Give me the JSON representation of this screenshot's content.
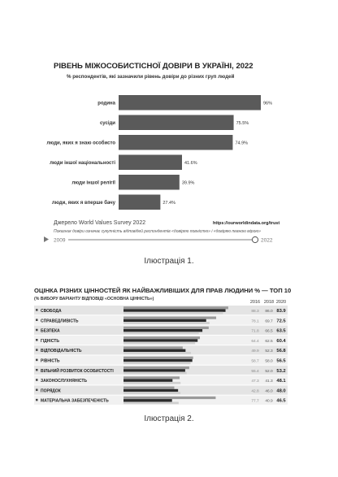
{
  "figure1": {
    "chart_data": {
      "type": "bar",
      "title": "РІВЕНЬ МІЖОСОБИСТІСНОЇ ДОВІРИ В УКРАЇНІ, 2022",
      "subtitle": "% респондентів, які зазначили рівень довіри до різних груп людей",
      "categories": [
        "родина",
        "сусіди",
        "люди, яких я знаю особисто",
        "люди іншої національності",
        "люди іншої релігії",
        "люди, яких я вперше бачу"
      ],
      "values": [
        96,
        75.5,
        74.9,
        41.6,
        39.9,
        27.4
      ],
      "value_labels": [
        "96%",
        "75.5%",
        "74.9%",
        "41.6%",
        "39.9%",
        "27.4%"
      ],
      "xlim": [
        0,
        100
      ],
      "colors": {
        "bar": "#5a5a5a"
      }
    },
    "source": "Джерело World Values Survey 2022",
    "site": "https://ourworldindata.org/trust",
    "note": "Показник довіри означає сукупність відповідей респондентів «довіряю повністю» і «довіряю певною мірою»",
    "timeline": {
      "start": "2009",
      "end": "2022"
    },
    "caption": "Ілюстрація 1."
  },
  "figure2": {
    "chart_data": {
      "type": "bar",
      "title": "ОЦІНКА РІЗНИХ ЦІННОСТЕЙ ЯК НАЙВАЖЛИВІШИХ ДЛЯ ПРАВ ЛЮДИНИ % — ТОП 10",
      "subtitle": "(% ВИБОРУ ВАРІАНТУ ВІДПОВІДІ «ОСНОВНА ЦІННІСТЬ»)",
      "categories": [
        "СВОБОДА",
        "СПРАВЕДЛИВІСТЬ",
        "БЕЗПЕКА",
        "ГІДНІСТЬ",
        "ВІДПОВІДАЛЬНІСТЬ",
        "РІВНІСТЬ",
        "ВІЛЬНИЙ РОЗВИТОК ОСОБИСТОСТІ",
        "ЗАКОНОСЛУХНЯНІСТЬ",
        "ПОРЯДОК",
        "МАТЕРІАЛЬНА ЗАБЕЗПЕЧЕНІСТЬ"
      ],
      "series": [
        {
          "name": "2016",
          "values": [
            88.3,
            78.1,
            71.8,
            64.4,
            49.9,
            58.7,
            55.4,
            47.3,
            42.8,
            77.7
          ],
          "color": "#9a9a9a"
        },
        {
          "name": "2018",
          "values": [
            86.0,
            69.7,
            66.5,
            62.5,
            52.3,
            58.0,
            52.0,
            41.3,
            46.0,
            40.9
          ],
          "color": "#2b2b2b"
        },
        {
          "name": "2020",
          "values": [
            83.9,
            72.5,
            63.5,
            60.4,
            56.8,
            56.5,
            53.2,
            48.1,
            48.0,
            46.5
          ],
          "color": "#e2e2e2"
        }
      ],
      "xlim": [
        0,
        100
      ]
    },
    "caption": "Ілюстрація 2."
  }
}
